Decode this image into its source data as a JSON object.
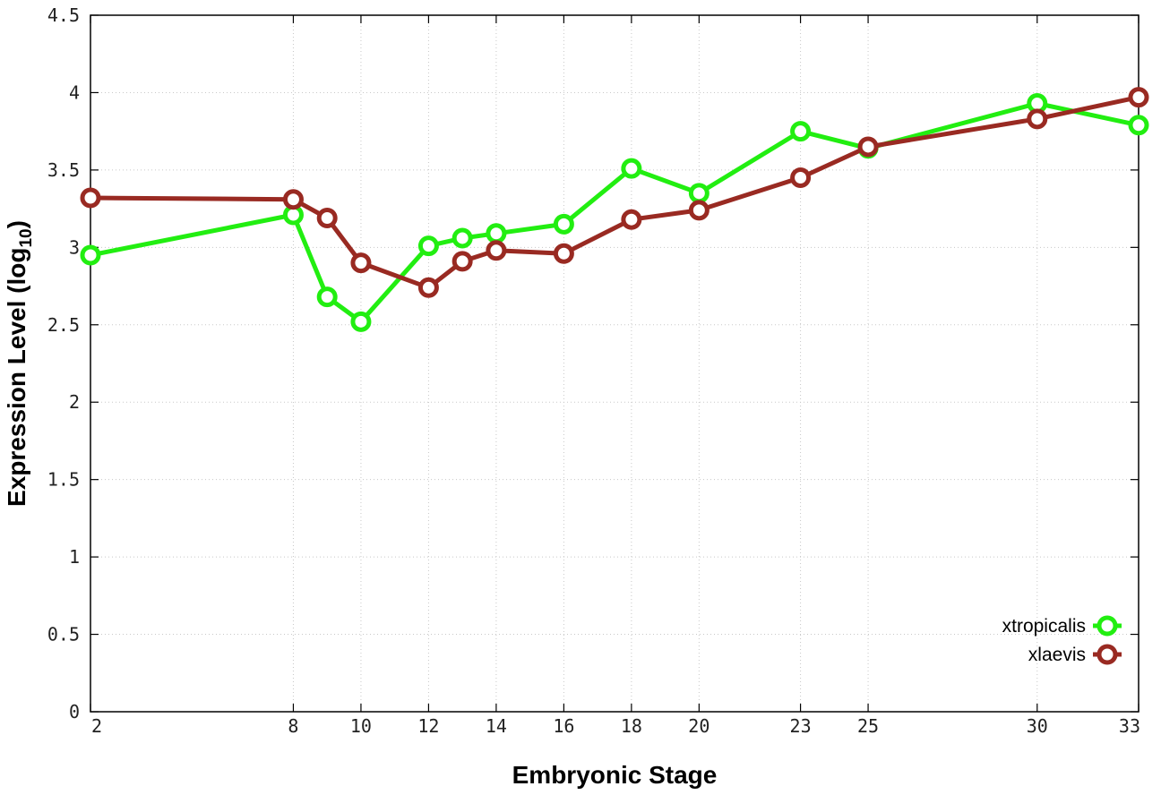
{
  "chart_data": {
    "type": "line",
    "xlabel": "Embryonic Stage",
    "ylabel": "Expression Level (log",
    "ylabel_subscript": "10",
    "ylabel_close": ")",
    "x_ticks": [
      2,
      8,
      10,
      12,
      14,
      16,
      18,
      20,
      23,
      25,
      30,
      33
    ],
    "y_ticks": [
      "0",
      "0.5",
      "1",
      "1.5",
      "2",
      "2.5",
      "3",
      "3.5",
      "4",
      "4.5"
    ],
    "ylim": [
      0,
      4.5
    ],
    "grid": true,
    "legend_position": "bottom-right",
    "series": [
      {
        "name": "xtropicalis",
        "color": "#22ee11",
        "points": [
          [
            2,
            2.95
          ],
          [
            8,
            3.21
          ],
          [
            9,
            2.68
          ],
          [
            10,
            2.52
          ],
          [
            12,
            3.01
          ],
          [
            13,
            3.06
          ],
          [
            14,
            3.09
          ],
          [
            16,
            3.15
          ],
          [
            18,
            3.51
          ],
          [
            20,
            3.35
          ],
          [
            23,
            3.75
          ],
          [
            25,
            3.64
          ],
          [
            30,
            3.93
          ],
          [
            33,
            3.79
          ]
        ]
      },
      {
        "name": "xlaevis",
        "color": "#992a22",
        "points": [
          [
            2,
            3.32
          ],
          [
            8,
            3.31
          ],
          [
            9,
            3.19
          ],
          [
            10,
            2.9
          ],
          [
            12,
            2.74
          ],
          [
            13,
            2.91
          ],
          [
            14,
            2.98
          ],
          [
            16,
            2.96
          ],
          [
            18,
            3.18
          ],
          [
            20,
            3.24
          ],
          [
            23,
            3.45
          ],
          [
            25,
            3.65
          ],
          [
            30,
            3.83
          ],
          [
            33,
            3.97
          ]
        ]
      }
    ]
  }
}
